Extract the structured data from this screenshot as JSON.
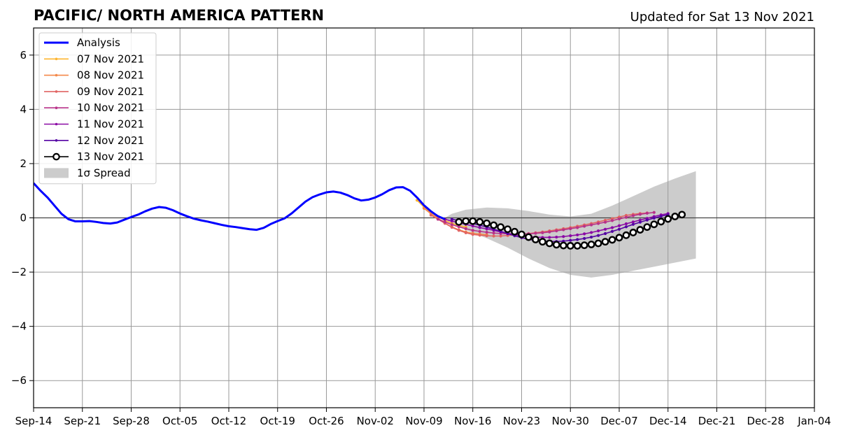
{
  "header": {
    "title": "PACIFIC/ NORTH AMERICA PATTERN",
    "updated": "Updated for Sat 13 Nov 2021"
  },
  "chart_data": {
    "type": "line",
    "title": "PACIFIC/ NORTH AMERICA PATTERN",
    "xlabel": "",
    "ylabel": "",
    "x_axis": {
      "range": [
        "2021-09-14",
        "2022-01-04"
      ],
      "ticks": [
        "2021-09-14",
        "2021-09-21",
        "2021-09-28",
        "2021-10-05",
        "2021-10-12",
        "2021-10-19",
        "2021-10-26",
        "2021-11-02",
        "2021-11-09",
        "2021-11-16",
        "2021-11-23",
        "2021-11-30",
        "2021-12-07",
        "2021-12-14",
        "2021-12-21",
        "2021-12-28",
        "2022-01-04"
      ],
      "tick_labels": [
        "Sep-14",
        "Sep-21",
        "Sep-28",
        "Oct-05",
        "Oct-12",
        "Oct-19",
        "Oct-26",
        "Nov-02",
        "Nov-09",
        "Nov-16",
        "Nov-23",
        "Nov-30",
        "Dec-07",
        "Dec-14",
        "Dec-21",
        "Dec-28",
        "Jan-04"
      ]
    },
    "y_axis": {
      "range": [
        -7,
        7
      ],
      "ticks": [
        -6,
        -4,
        -2,
        0,
        2,
        4,
        6
      ],
      "tick_labels": [
        "−6",
        "−4",
        "−2",
        "0",
        "2",
        "4",
        "6"
      ]
    },
    "grid": true,
    "legend": "top-left",
    "spread_label": "1σ Spread",
    "spread": {
      "color": "#cccccc",
      "points": [
        {
          "x": "2021-11-12",
          "upper": 0.0,
          "lower": -0.05
        },
        {
          "x": "2021-11-13",
          "upper": 0.15,
          "lower": -0.2
        },
        {
          "x": "2021-11-15",
          "upper": 0.3,
          "lower": -0.45
        },
        {
          "x": "2021-11-18",
          "upper": 0.38,
          "lower": -0.75
        },
        {
          "x": "2021-11-21",
          "upper": 0.35,
          "lower": -1.1
        },
        {
          "x": "2021-11-24",
          "upper": 0.25,
          "lower": -1.5
        },
        {
          "x": "2021-11-27",
          "upper": 0.12,
          "lower": -1.85
        },
        {
          "x": "2021-11-30",
          "upper": 0.05,
          "lower": -2.1
        },
        {
          "x": "2021-12-03",
          "upper": 0.15,
          "lower": -2.2
        },
        {
          "x": "2021-12-06",
          "upper": 0.45,
          "lower": -2.1
        },
        {
          "x": "2021-12-09",
          "upper": 0.8,
          "lower": -1.95
        },
        {
          "x": "2021-12-12",
          "upper": 1.15,
          "lower": -1.8
        },
        {
          "x": "2021-12-15",
          "upper": 1.45,
          "lower": -1.65
        },
        {
          "x": "2021-12-18",
          "upper": 1.72,
          "lower": -1.5
        }
      ]
    },
    "series": [
      {
        "name": "Analysis",
        "color": "#0000ff",
        "style": "analysis",
        "start": "2021-09-14",
        "values": [
          1.28,
          1.0,
          0.75,
          0.45,
          0.15,
          -0.05,
          -0.13,
          -0.13,
          -0.12,
          -0.15,
          -0.19,
          -0.21,
          -0.17,
          -0.07,
          0.03,
          0.12,
          0.24,
          0.34,
          0.4,
          0.37,
          0.28,
          0.16,
          0.06,
          -0.03,
          -0.09,
          -0.14,
          -0.2,
          -0.26,
          -0.31,
          -0.34,
          -0.38,
          -0.42,
          -0.44,
          -0.37,
          -0.23,
          -0.12,
          -0.02,
          0.16,
          0.38,
          0.6,
          0.76,
          0.86,
          0.94,
          0.97,
          0.93,
          0.84,
          0.72,
          0.64,
          0.67,
          0.75,
          0.87,
          1.02,
          1.12,
          1.13,
          1.0,
          0.75,
          0.46,
          0.24,
          0.06,
          -0.05
        ]
      },
      {
        "name": "07 Nov 2021",
        "color": "#fdb42f",
        "style": "forecast",
        "start": "2021-11-08",
        "values": [
          0.65,
          0.4,
          0.2,
          0.05,
          -0.1,
          -0.2,
          -0.28,
          -0.34
        ]
      },
      {
        "name": "08 Nov 2021",
        "color": "#f48849",
        "style": "forecast",
        "start": "2021-11-09",
        "values": [
          0.35,
          0.15,
          0.0,
          -0.2,
          -0.33,
          -0.44,
          -0.52,
          -0.57,
          -0.6,
          -0.62
        ]
      },
      {
        "name": "09 Nov 2021",
        "color": "#e16462",
        "style": "forecast",
        "start": "2021-11-10",
        "values": [
          0.1,
          -0.05,
          -0.2,
          -0.35,
          -0.46,
          -0.55,
          -0.61,
          -0.64,
          -0.66,
          -0.67,
          -0.67,
          -0.65,
          -0.62,
          -0.6,
          -0.58,
          -0.55,
          -0.52,
          -0.48,
          -0.44,
          -0.4,
          -0.36,
          -0.31,
          -0.26,
          -0.21,
          -0.15,
          -0.09,
          -0.03,
          0.03,
          0.09,
          0.13,
          0.16,
          0.18
        ]
      },
      {
        "name": "10 Nov 2021",
        "color": "#b83289",
        "style": "forecast",
        "start": "2021-11-11",
        "values": [
          -0.05,
          -0.15,
          -0.25,
          -0.33,
          -0.4,
          -0.46,
          -0.5,
          -0.53,
          -0.56,
          -0.58,
          -0.59,
          -0.6,
          -0.6,
          -0.59,
          -0.57,
          -0.55,
          -0.52,
          -0.48,
          -0.44,
          -0.4,
          -0.36,
          -0.31,
          -0.26,
          -0.21,
          -0.16,
          -0.1,
          -0.04,
          0.02,
          0.08,
          0.13,
          0.17,
          0.2
        ]
      },
      {
        "name": "11 Nov 2021",
        "color": "#8b0aa5",
        "style": "forecast",
        "start": "2021-11-12",
        "values": [
          -0.05,
          -0.12,
          -0.18,
          -0.24,
          -0.3,
          -0.36,
          -0.41,
          -0.46,
          -0.52,
          -0.57,
          -0.62,
          -0.66,
          -0.69,
          -0.71,
          -0.72,
          -0.72,
          -0.71,
          -0.69,
          -0.66,
          -0.63,
          -0.59,
          -0.54,
          -0.48,
          -0.42,
          -0.36,
          -0.29,
          -0.22,
          -0.15,
          -0.08,
          -0.02,
          0.05,
          0.11,
          0.16
        ]
      },
      {
        "name": "12 Nov 2021",
        "color": "#5302a3",
        "style": "forecast",
        "start": "2021-11-13",
        "values": [
          -0.05,
          -0.1,
          -0.15,
          -0.21,
          -0.27,
          -0.34,
          -0.42,
          -0.5,
          -0.58,
          -0.66,
          -0.73,
          -0.79,
          -0.83,
          -0.86,
          -0.87,
          -0.87,
          -0.86,
          -0.83,
          -0.8,
          -0.76,
          -0.71,
          -0.65,
          -0.58,
          -0.5,
          -0.42,
          -0.33,
          -0.24,
          -0.16,
          -0.08,
          -0.01,
          0.06,
          0.12
        ]
      },
      {
        "name": "13 Nov 2021",
        "color": "#000000",
        "style": "circles",
        "start": "2021-11-14",
        "values": [
          -0.15,
          -0.12,
          -0.12,
          -0.15,
          -0.2,
          -0.27,
          -0.34,
          -0.42,
          -0.51,
          -0.61,
          -0.71,
          -0.8,
          -0.88,
          -0.94,
          -0.99,
          -1.02,
          -1.03,
          -1.03,
          -1.01,
          -0.98,
          -0.94,
          -0.88,
          -0.81,
          -0.73,
          -0.64,
          -0.54,
          -0.44,
          -0.34,
          -0.24,
          -0.14,
          -0.04,
          0.05,
          0.12
        ]
      }
    ]
  }
}
